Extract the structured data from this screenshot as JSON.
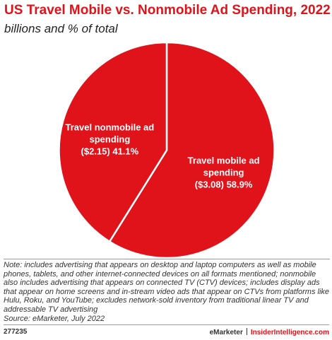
{
  "chart_data": {
    "type": "pie",
    "title": "US Travel Mobile vs. Nonmobile Ad Spending, 2022",
    "subtitle": "billions and % of total",
    "categories": [
      "Travel mobile ad spending",
      "Travel nonmobile ad spending"
    ],
    "values": [
      58.9,
      41.1
    ],
    "value_labels": [
      "($3.08) 58.9%",
      "($2.15) 41.1%"
    ],
    "colors": [
      "#e0131b",
      "#e0131b"
    ]
  },
  "note": "Note: includes advertising that appears on desktop and laptop computers as well as mobile phones, tablets, and other internet-connected devices on all formats mentioned; nonmobile also includes advertising that appears on connected TV (CTV) devices; includes display ads that appear on home screens and in-stream video ads that appear on CTVs from platforms like Hulu, Roku, and YouTube; excludes network-sold inventory from traditional linear TV and addressable TV advertising",
  "source": "Source: eMarketer, July 2022",
  "chart_id": "277235",
  "brand": "eMarketer",
  "site": "InsiderIntelligence.com"
}
